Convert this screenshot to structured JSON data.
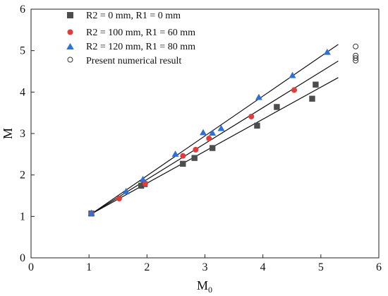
{
  "chart_data": {
    "type": "scatter",
    "title": "",
    "xlabel": "M",
    "xlabel_subscript": "0",
    "ylabel": "M",
    "xlim": [
      0,
      6
    ],
    "ylim": [
      0,
      6
    ],
    "xticks": [
      0,
      1,
      2,
      3,
      4,
      5,
      6
    ],
    "yticks": [
      0,
      1,
      2,
      3,
      4,
      5,
      6
    ],
    "grid": false,
    "legend_position": "top-left",
    "series": [
      {
        "name": "R2 = 0 mm, R1 = 0 mm",
        "marker": "square",
        "color": "#4d4d4d",
        "points": [
          [
            1.04,
            1.07
          ],
          [
            1.9,
            1.74
          ],
          [
            1.96,
            1.78
          ],
          [
            2.62,
            2.27
          ],
          [
            2.82,
            2.41
          ],
          [
            3.13,
            2.65
          ],
          [
            3.9,
            3.19
          ],
          [
            4.24,
            3.64
          ],
          [
            4.85,
            3.84
          ],
          [
            4.91,
            4.18
          ]
        ],
        "fit": [
          [
            1.04,
            1.06
          ],
          [
            5.3,
            4.35
          ]
        ]
      },
      {
        "name": "R2 = 100 mm, R1 = 60 mm",
        "marker": "circle",
        "color": "#e03c3c",
        "points": [
          [
            1.04,
            1.07
          ],
          [
            1.52,
            1.43
          ],
          [
            1.97,
            1.79
          ],
          [
            2.62,
            2.46
          ],
          [
            2.84,
            2.61
          ],
          [
            3.07,
            2.88
          ],
          [
            3.8,
            3.41
          ],
          [
            4.54,
            4.05
          ]
        ],
        "fit": [
          [
            1.04,
            1.06
          ],
          [
            5.3,
            4.75
          ]
        ]
      },
      {
        "name": "R2 = 120 mm, R1 = 80 mm",
        "marker": "triangle",
        "color": "#2f6fd6",
        "points": [
          [
            1.04,
            1.08
          ],
          [
            1.64,
            1.6
          ],
          [
            1.93,
            1.89
          ],
          [
            2.49,
            2.5
          ],
          [
            2.97,
            3.02
          ],
          [
            3.13,
            3.01
          ],
          [
            3.28,
            3.12
          ],
          [
            3.93,
            3.87
          ],
          [
            4.51,
            4.4
          ],
          [
            5.11,
            4.96
          ]
        ],
        "fit": [
          [
            1.04,
            1.06
          ],
          [
            5.3,
            5.15
          ]
        ]
      },
      {
        "name": "Present numerical result",
        "marker": "open-circle",
        "color": "#333333",
        "points": [
          [
            5.6,
            5.1
          ],
          [
            5.6,
            4.88
          ],
          [
            5.6,
            4.82
          ],
          [
            5.6,
            4.76
          ]
        ]
      }
    ]
  }
}
